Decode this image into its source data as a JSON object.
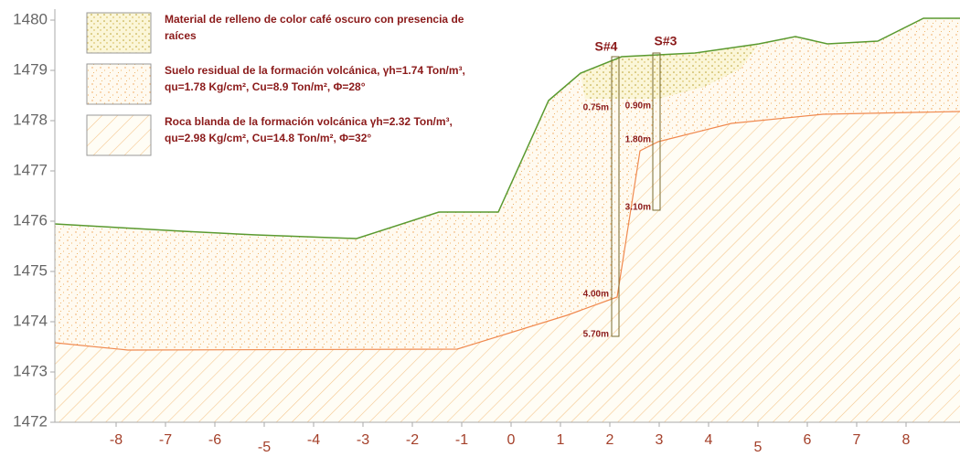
{
  "y_axis": {
    "ticks": [
      "1480",
      "1479",
      "1478",
      "1477",
      "1476",
      "1475",
      "1474",
      "1473",
      "1472"
    ]
  },
  "x_axis": {
    "ticks": [
      "-8",
      "-7",
      "-6",
      "-5",
      "-4",
      "-3",
      "-2",
      "-1",
      "0",
      "1",
      "2",
      "3",
      "4",
      "5",
      "6",
      "7",
      "8"
    ]
  },
  "legend": [
    {
      "lines": [
        "Material de relleno de color café oscuro con presencia de",
        "raíces"
      ]
    },
    {
      "lines": [
        "Suelo residual de la formación volcánica, γh=1.74 Ton/m³,",
        "qu=1.78 Kg/cm², Cu=8.9 Ton/m², Φ=28°"
      ]
    },
    {
      "lines": [
        "Roca blanda de la formación volcánica γh=2.32 Ton/m³,",
        "qu=2.98 Kg/cm², Cu=14.8 Ton/m², Φ=32°"
      ]
    }
  ],
  "boreholes": [
    {
      "label": "S#4",
      "depths": [
        "0.75m",
        "4.00m",
        "5.70m"
      ]
    },
    {
      "label": "S#3",
      "depths": [
        "0.90m",
        "1.80m",
        "3.10m"
      ]
    }
  ]
}
